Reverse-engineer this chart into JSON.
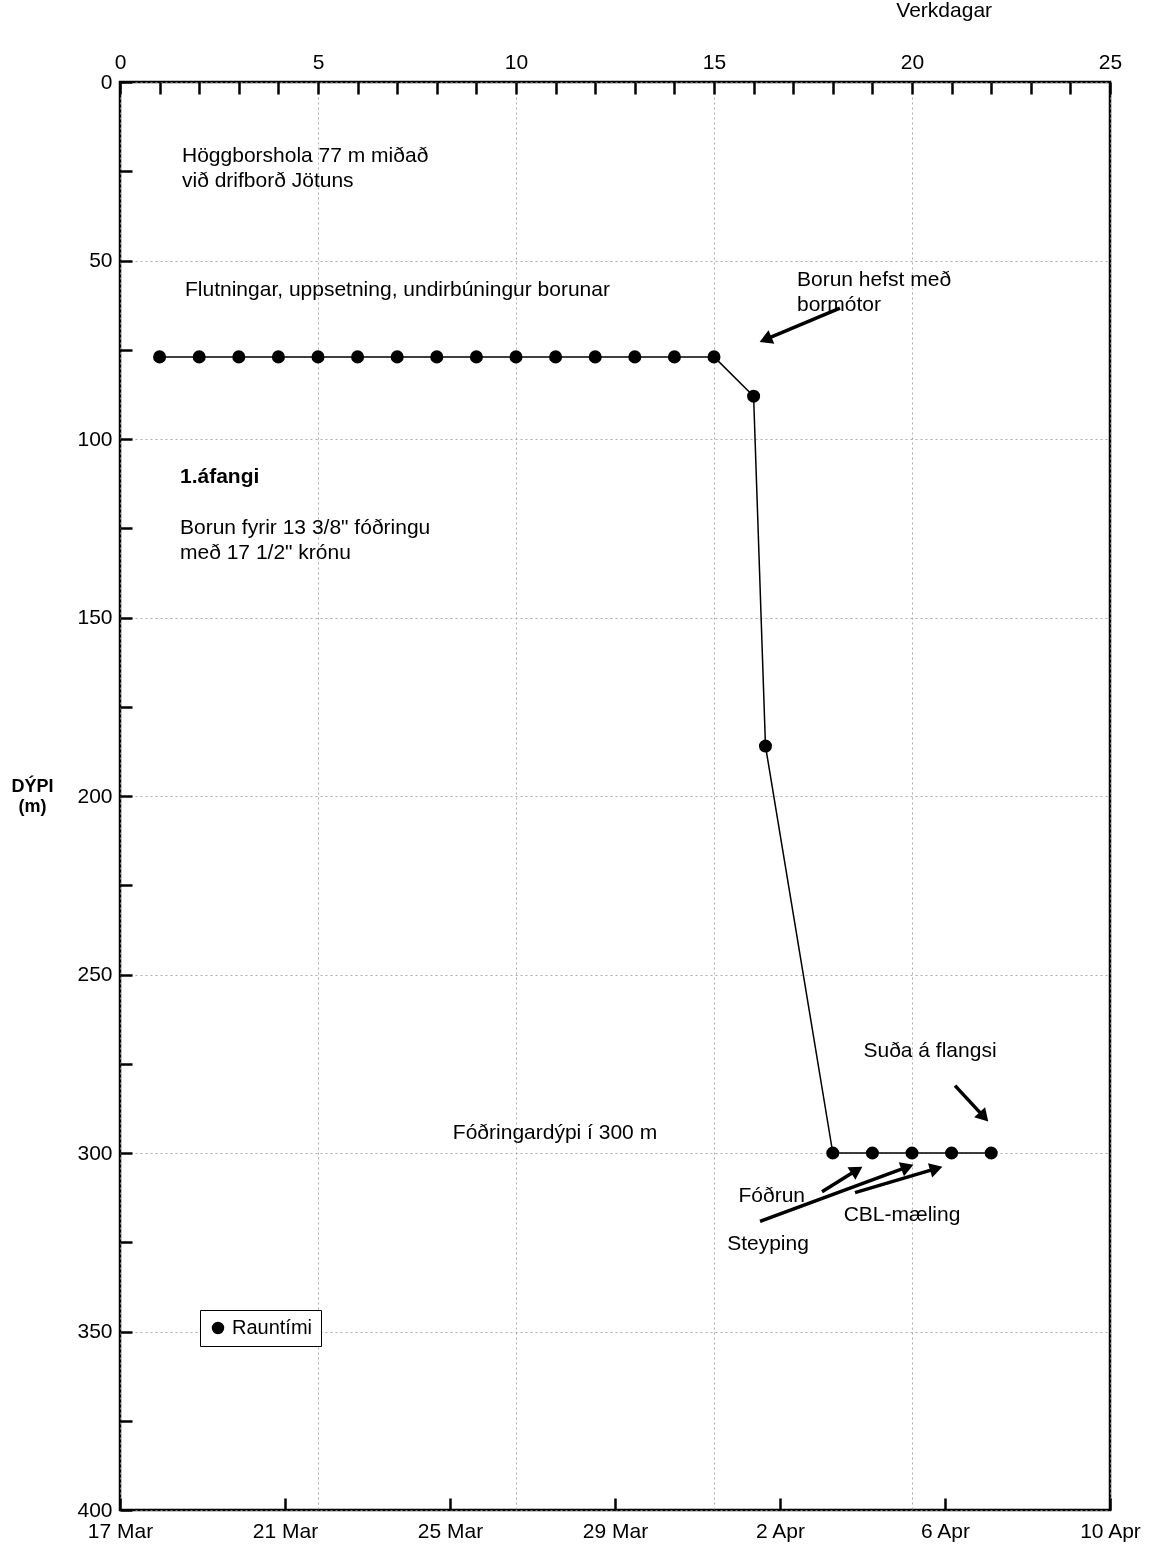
{
  "chart_data": {
    "type": "line",
    "xlabel": "Verkdagar",
    "ylabel": "DÝPI\n(m)",
    "x": [
      1,
      2,
      3,
      4,
      5,
      6,
      7,
      8,
      9,
      10,
      11,
      12,
      13,
      14,
      15,
      16,
      16.3,
      18,
      19,
      20,
      21,
      22
    ],
    "series": [
      {
        "name": "Rauntími",
        "color": "#000000",
        "values": [
          77,
          77,
          77,
          77,
          77,
          77,
          77,
          77,
          77,
          77,
          77,
          77,
          77,
          77,
          77,
          88,
          186,
          300,
          300,
          300,
          300,
          300
        ]
      }
    ],
    "xlim": [
      0,
      25
    ],
    "xticks": [
      0,
      {
        "value": 1,
        "label": null
      },
      {
        "value": 2,
        "label": null
      },
      {
        "value": 3,
        "label": null
      },
      {
        "value": 4,
        "label": null
      },
      5,
      {
        "value": 6,
        "label": null
      },
      {
        "value": 7,
        "label": null
      },
      {
        "value": 8,
        "label": null
      },
      {
        "value": 9,
        "label": null
      },
      10,
      {
        "value": 11,
        "label": null
      },
      {
        "value": 12,
        "label": null
      },
      {
        "value": 13,
        "label": null
      },
      {
        "value": 14,
        "label": null
      },
      15,
      {
        "value": 16,
        "label": null
      },
      {
        "value": 17,
        "label": null
      },
      {
        "value": 18,
        "label": null
      },
      {
        "value": 19,
        "label": null
      },
      20,
      {
        "value": 21,
        "label": null
      },
      {
        "value": 22,
        "label": null
      },
      {
        "value": 23,
        "label": null
      },
      {
        "value": 24,
        "label": null
      },
      25
    ],
    "x2lim": [
      "--03-17",
      "--04-10"
    ],
    "x2ticks": [
      {
        "value": "--03-17",
        "label": "17 Mar"
      },
      {
        "value": "--03-21",
        "label": "21 Mar"
      },
      {
        "value": "--03-25",
        "label": "25 Mar"
      },
      {
        "value": "--03-29",
        "label": "29 Mar"
      },
      {
        "value": "--04-02",
        "label": "2 Apr"
      },
      {
        "value": "--04-06",
        "label": "6 Apr"
      },
      {
        "value": "--04-10",
        "label": "10 Apr"
      }
    ],
    "ylim": [
      400,
      0
    ],
    "yticks": [
      0,
      {
        "value": 25,
        "label": null
      },
      50,
      {
        "value": 75,
        "label": null
      },
      100,
      {
        "value": 125,
        "label": null
      },
      150,
      {
        "value": 175,
        "label": null
      },
      200,
      {
        "value": 225,
        "label": null
      },
      250,
      {
        "value": 275,
        "label": null
      },
      300,
      {
        "value": 325,
        "label": null
      },
      350,
      {
        "value": 375,
        "label": null
      },
      400
    ],
    "grid": true,
    "legend": "bottom left",
    "marker": "circle",
    "line_style": "solid",
    "annotations": [
      "Höggborshola 77 m miðað\nvið drifborð Jötuns",
      "Flutningar, uppsetning, undirbúningur borunar",
      "1.áfangi",
      "Borun fyrir 13 3/8\" fóðringu\nmeð 17 1/2\" krónu",
      "Fóðringardýpi í 300 m",
      "Borun hefst með\nbormótor",
      "Suða á flangsi",
      "Fóðrun",
      "Steyping",
      "CBL-mæling"
    ]
  }
}
